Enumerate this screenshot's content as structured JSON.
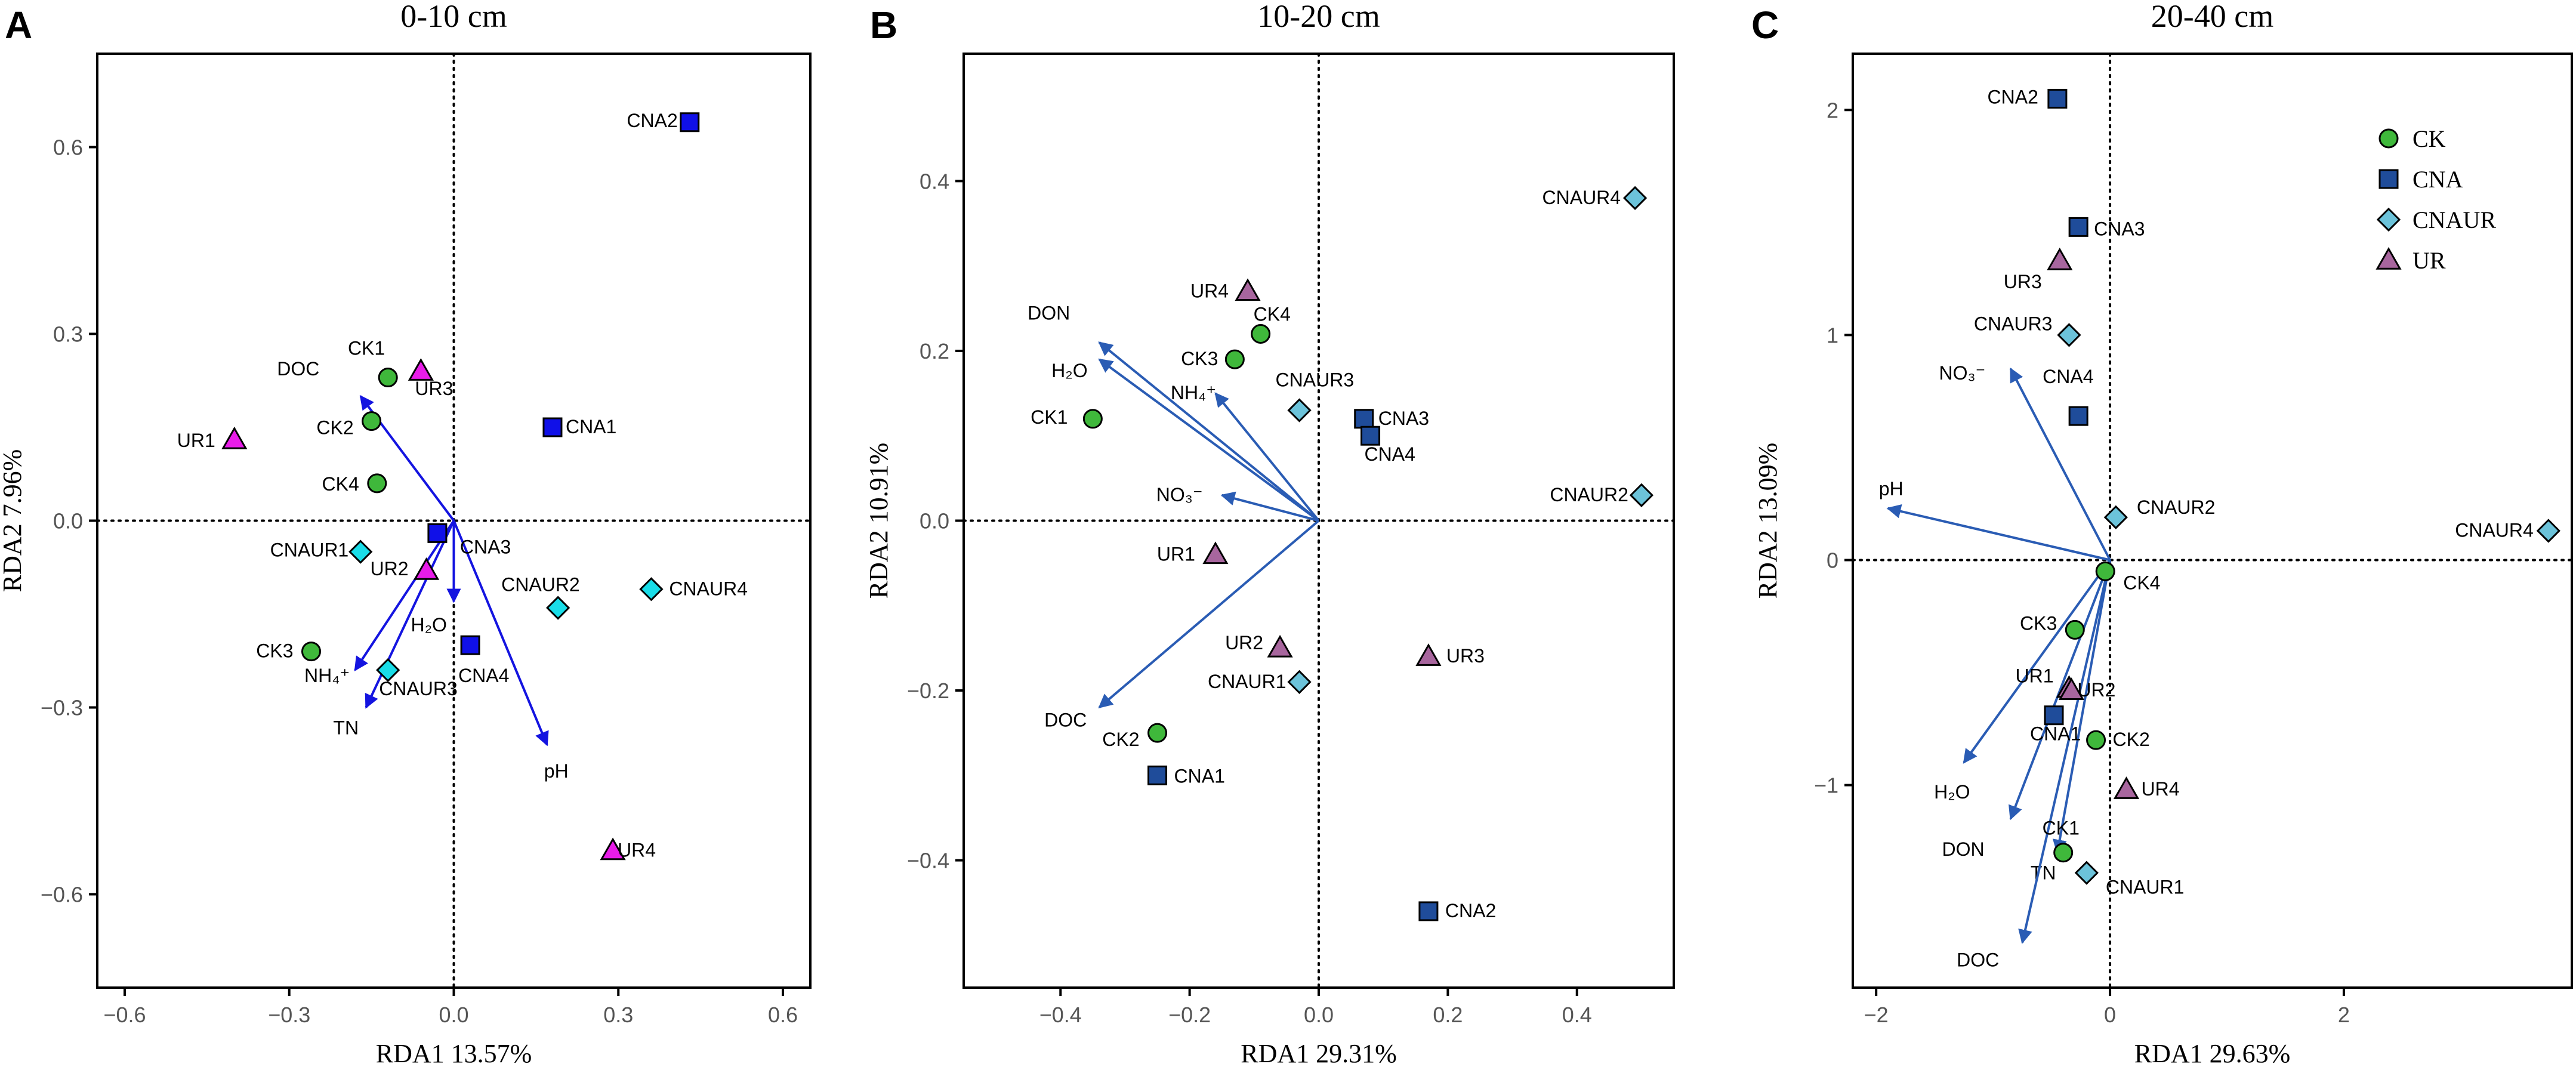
{
  "colors": {
    "CK": "#3fb83b",
    "CNA_A": "#1010e8",
    "CNA_BC": "#1f4c9a",
    "CNAUR_A": "#19dde8",
    "CNAUR_BC": "#6cc3da",
    "UR_A": "#e81ce8",
    "UR_BC": "#a8669e",
    "arrow_A": "#1414e0",
    "arrow_BC": "#2a5cb4"
  },
  "legend": {
    "items": [
      "CK",
      "CNA",
      "CNAUR",
      "UR"
    ],
    "placement": "top-right of panel C"
  },
  "chart_data": [
    {
      "panel": "A",
      "type": "scatter",
      "title": "0-10 cm",
      "xlabel": "RDA1 13.57%",
      "ylabel": "RDA2 7.96%",
      "xlim": [
        -0.65,
        0.65
      ],
      "ylim": [
        -0.75,
        0.75
      ],
      "xticks": [
        -0.6,
        -0.3,
        0.0,
        0.3,
        0.6
      ],
      "xtick_labels": [
        "−0.6",
        "−0.3",
        "0.0",
        "0.3",
        "0.6"
      ],
      "yticks": [
        -0.6,
        -0.3,
        0.0,
        0.3,
        0.6
      ],
      "ytick_labels": [
        "−0.6",
        "−0.3",
        "0.0",
        "0.3",
        "0.6"
      ],
      "points": [
        {
          "label": "CK1",
          "group": "CK",
          "x": -0.12,
          "y": 0.23
        },
        {
          "label": "CK2",
          "group": "CK",
          "x": -0.15,
          "y": 0.16
        },
        {
          "label": "CK3",
          "group": "CK",
          "x": -0.26,
          "y": -0.21
        },
        {
          "label": "CK4",
          "group": "CK",
          "x": -0.14,
          "y": 0.06
        },
        {
          "label": "CNA1",
          "group": "CNA",
          "x": 0.18,
          "y": 0.15
        },
        {
          "label": "CNA2",
          "group": "CNA",
          "x": 0.43,
          "y": 0.64
        },
        {
          "label": "CNA3",
          "group": "CNA",
          "x": -0.03,
          "y": -0.02
        },
        {
          "label": "CNA4",
          "group": "CNA",
          "x": 0.03,
          "y": -0.2
        },
        {
          "label": "CNAUR1",
          "group": "CNAUR",
          "x": -0.17,
          "y": -0.05
        },
        {
          "label": "CNAUR2",
          "group": "CNAUR",
          "x": 0.19,
          "y": -0.14
        },
        {
          "label": "CNAUR3",
          "group": "CNAUR",
          "x": -0.12,
          "y": -0.24
        },
        {
          "label": "CNAUR4",
          "group": "CNAUR",
          "x": 0.36,
          "y": -0.11
        },
        {
          "label": "UR1",
          "group": "UR",
          "x": -0.4,
          "y": 0.13
        },
        {
          "label": "UR2",
          "group": "UR",
          "x": -0.05,
          "y": -0.08
        },
        {
          "label": "UR3",
          "group": "UR",
          "x": -0.06,
          "y": 0.24
        },
        {
          "label": "UR4",
          "group": "UR",
          "x": 0.29,
          "y": -0.53
        }
      ],
      "arrows": [
        {
          "label": "DOC",
          "x": -0.17,
          "y": 0.2
        },
        {
          "label": "H2O",
          "x": 0.0,
          "y": -0.13
        },
        {
          "label": "NH4+",
          "x": -0.18,
          "y": -0.24
        },
        {
          "label": "TN",
          "x": -0.16,
          "y": -0.3
        },
        {
          "label": "pH",
          "x": 0.17,
          "y": -0.36
        }
      ]
    },
    {
      "panel": "B",
      "type": "scatter",
      "title": "10-20 cm",
      "xlabel": "RDA1 29.31%",
      "ylabel": "RDA2 10.91%",
      "xlim": [
        -0.55,
        0.55
      ],
      "ylim": [
        -0.55,
        0.55
      ],
      "xticks": [
        -0.4,
        -0.2,
        0.0,
        0.2,
        0.4
      ],
      "xtick_labels": [
        "−0.4",
        "−0.2",
        "0.0",
        "0.2",
        "0.4"
      ],
      "yticks": [
        -0.4,
        -0.2,
        0.0,
        0.2,
        0.4
      ],
      "ytick_labels": [
        "−0.4",
        "−0.2",
        "0.0",
        "0.2",
        "0.4"
      ],
      "points": [
        {
          "label": "CK1",
          "group": "CK",
          "x": -0.35,
          "y": 0.12
        },
        {
          "label": "CK2",
          "group": "CK",
          "x": -0.25,
          "y": -0.25
        },
        {
          "label": "CK3",
          "group": "CK",
          "x": -0.13,
          "y": 0.19
        },
        {
          "label": "CK4",
          "group": "CK",
          "x": -0.09,
          "y": 0.22
        },
        {
          "label": "CNA1",
          "group": "CNA",
          "x": -0.25,
          "y": -0.3
        },
        {
          "label": "CNA2",
          "group": "CNA",
          "x": 0.17,
          "y": -0.46
        },
        {
          "label": "CNA3",
          "group": "CNA",
          "x": 0.07,
          "y": 0.12
        },
        {
          "label": "CNA4",
          "group": "CNA",
          "x": 0.08,
          "y": 0.1
        },
        {
          "label": "CNAUR1",
          "group": "CNAUR",
          "x": -0.03,
          "y": -0.19
        },
        {
          "label": "CNAUR2",
          "group": "CNAUR",
          "x": 0.5,
          "y": 0.03
        },
        {
          "label": "CNAUR3",
          "group": "CNAUR",
          "x": -0.03,
          "y": 0.13
        },
        {
          "label": "CNAUR4",
          "group": "CNAUR",
          "x": 0.49,
          "y": 0.38
        },
        {
          "label": "UR1",
          "group": "UR",
          "x": -0.16,
          "y": -0.04
        },
        {
          "label": "UR2",
          "group": "UR",
          "x": -0.06,
          "y": -0.15
        },
        {
          "label": "UR3",
          "group": "UR",
          "x": 0.17,
          "y": -0.16
        },
        {
          "label": "UR4",
          "group": "UR",
          "x": -0.11,
          "y": 0.27
        }
      ],
      "arrows": [
        {
          "label": "DON",
          "x": -0.34,
          "y": 0.21
        },
        {
          "label": "H2O",
          "x": -0.34,
          "y": 0.19
        },
        {
          "label": "NH4+",
          "x": -0.16,
          "y": 0.15
        },
        {
          "label": "NO3-",
          "x": -0.15,
          "y": 0.03
        },
        {
          "label": "DOC",
          "x": -0.34,
          "y": -0.22
        }
      ]
    },
    {
      "panel": "C",
      "type": "scatter",
      "title": "20-40 cm",
      "xlabel": "RDA1 29.63%",
      "ylabel": "RDA2 13.09%",
      "xlim": [
        -2.2,
        3.95
      ],
      "ylim": [
        -1.9,
        2.25
      ],
      "xticks": [
        -2,
        0,
        2
      ],
      "xtick_labels": [
        "−2",
        "0",
        "2"
      ],
      "yticks": [
        -1,
        0,
        1,
        2
      ],
      "ytick_labels": [
        "−1",
        "0",
        "1",
        "2"
      ],
      "points": [
        {
          "label": "CK1",
          "group": "CK",
          "x": -0.4,
          "y": -1.3
        },
        {
          "label": "CK2",
          "group": "CK",
          "x": -0.12,
          "y": -0.8
        },
        {
          "label": "CK3",
          "group": "CK",
          "x": -0.3,
          "y": -0.31
        },
        {
          "label": "CK4",
          "group": "CK",
          "x": -0.04,
          "y": -0.05
        },
        {
          "label": "CNA1",
          "group": "CNA",
          "x": -0.48,
          "y": -0.69
        },
        {
          "label": "CNA2",
          "group": "CNA",
          "x": -0.45,
          "y": 2.05
        },
        {
          "label": "CNA3",
          "group": "CNA",
          "x": -0.27,
          "y": 1.48
        },
        {
          "label": "CNA4",
          "group": "CNA",
          "x": -0.27,
          "y": 0.64
        },
        {
          "label": "CNAUR1",
          "group": "CNAUR",
          "x": -0.2,
          "y": -1.39
        },
        {
          "label": "CNAUR2",
          "group": "CNAUR",
          "x": 0.05,
          "y": 0.19
        },
        {
          "label": "CNAUR3",
          "group": "CNAUR",
          "x": -0.35,
          "y": 1.0
        },
        {
          "label": "CNAUR4",
          "group": "CNAUR",
          "x": 3.75,
          "y": 0.13
        },
        {
          "label": "UR1",
          "group": "UR",
          "x": -0.35,
          "y": -0.57
        },
        {
          "label": "UR2",
          "group": "UR",
          "x": -0.33,
          "y": -0.58
        },
        {
          "label": "UR3",
          "group": "UR",
          "x": -0.43,
          "y": 1.33
        },
        {
          "label": "UR4",
          "group": "UR",
          "x": 0.14,
          "y": -1.02
        }
      ],
      "arrows": [
        {
          "label": "NO3-",
          "x": -0.85,
          "y": 0.85
        },
        {
          "label": "pH",
          "x": -1.9,
          "y": 0.23
        },
        {
          "label": "H2O",
          "x": -1.25,
          "y": -0.9
        },
        {
          "label": "DON",
          "x": -0.85,
          "y": -1.15
        },
        {
          "label": "TN",
          "x": -0.45,
          "y": -1.3
        },
        {
          "label": "DOC",
          "x": -0.75,
          "y": -1.7
        }
      ]
    }
  ],
  "panel_letters": [
    "A",
    "B",
    "C"
  ],
  "label_text": {
    "H2O": "H₂O",
    "NH4+": "NH₄⁺",
    "NO3-": "NO₃⁻",
    "DOC": "DOC",
    "DON": "DON",
    "TN": "TN",
    "pH": "pH"
  }
}
